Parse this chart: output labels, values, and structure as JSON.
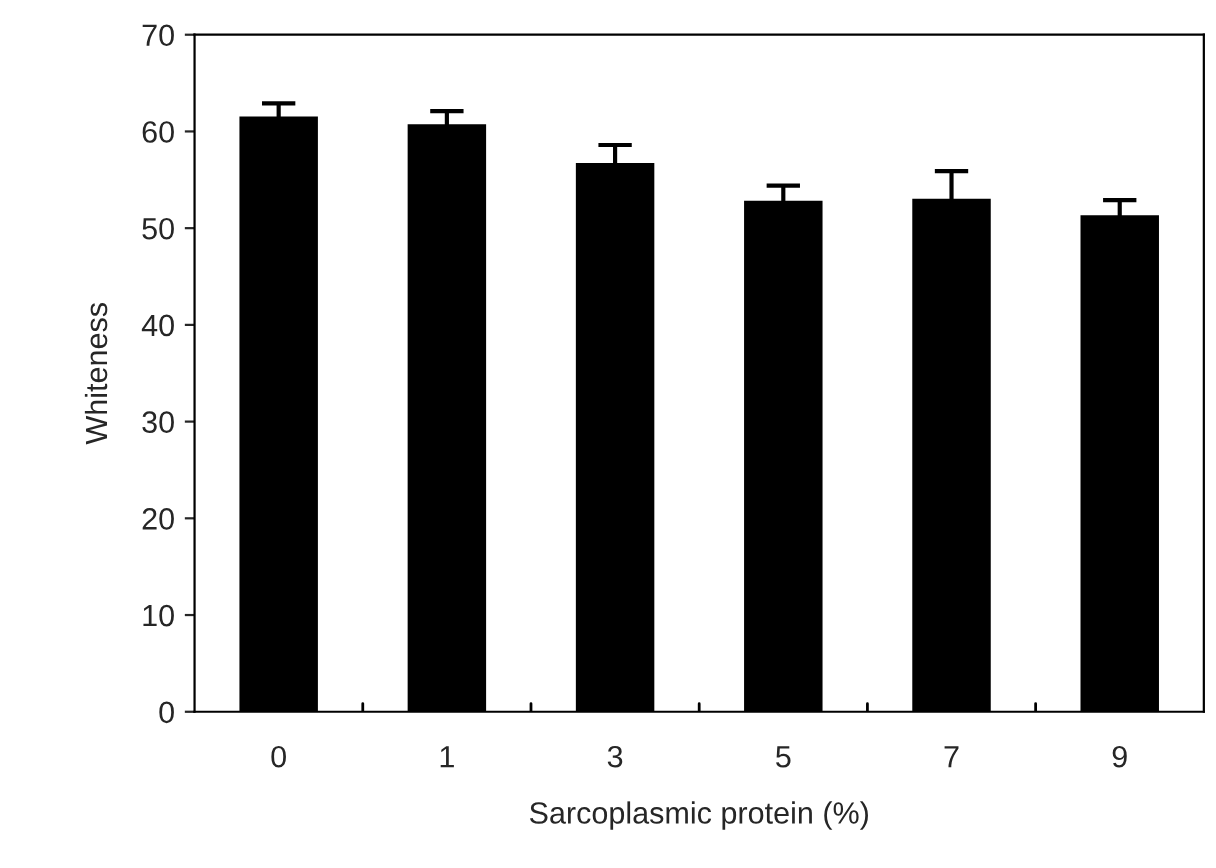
{
  "chart_data": {
    "type": "bar",
    "xlabel": "Sarcoplasmic protein (%)",
    "ylabel": "Whiteness",
    "categories": [
      "0",
      "1",
      "3",
      "5",
      "7",
      "9"
    ],
    "values": [
      61.4,
      60.6,
      56.6,
      52.7,
      52.9,
      51.2
    ],
    "errors": [
      1.5,
      1.5,
      2.0,
      1.7,
      3.0,
      1.7
    ],
    "color": "#000000",
    "ylim": [
      0,
      70
    ],
    "yticks": [
      0,
      10,
      20,
      30,
      40,
      50,
      60,
      70
    ],
    "grid": false
  }
}
